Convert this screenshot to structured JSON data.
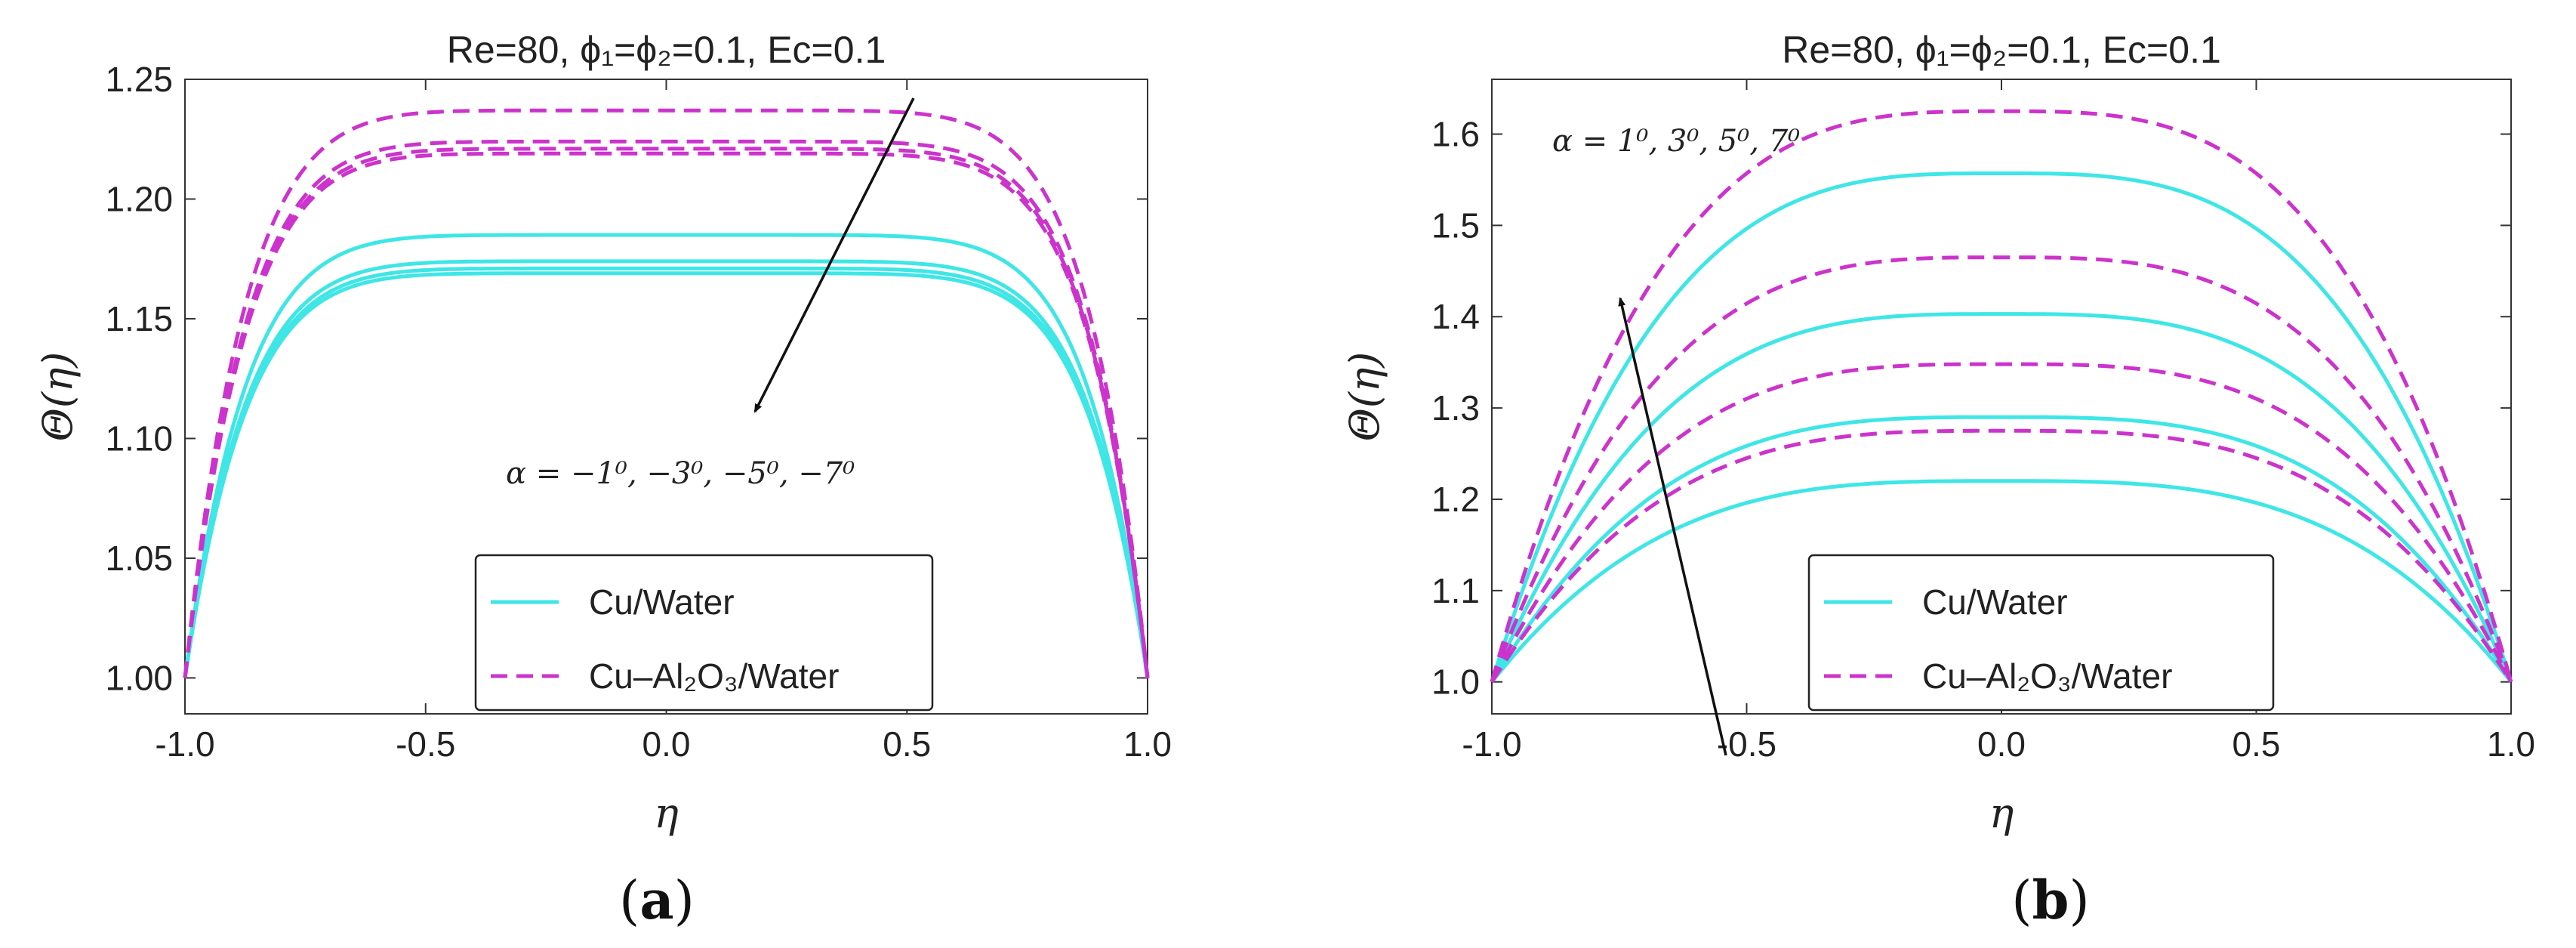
{
  "chart_data": [
    {
      "id": "a",
      "type": "line",
      "title": "Re=80, ϕ₁=ϕ₂=0.1, Ec=0.1",
      "xlabel": "η",
      "ylabel": "Θ(η)",
      "xlim": [
        -1.0,
        1.0
      ],
      "ylim": [
        0.985,
        1.25
      ],
      "xticks": [
        "-1.0",
        "-0.5",
        "0.0",
        "0.5",
        "1.0"
      ],
      "yticks": [
        "1.00",
        "1.05",
        "1.10",
        "1.15",
        "1.20",
        "1.25"
      ],
      "caption": "a",
      "annotation": "α = −1⁰, −3⁰, −5⁰, −7⁰",
      "legend": {
        "placement": "bottom-center",
        "entries": [
          "Cu/Water",
          "Cu–Al₂O₃/Water"
        ]
      },
      "colors": {
        "cu_water": "#3fe6e6",
        "hybrid": "#cc33cc"
      },
      "shape_exponent": 8,
      "series": [
        {
          "name": "Cu/Water",
          "style": "solid",
          "alpha": -1,
          "plateau": 1.185
        },
        {
          "name": "Cu/Water",
          "style": "solid",
          "alpha": -3,
          "plateau": 1.174
        },
        {
          "name": "Cu/Water",
          "style": "solid",
          "alpha": -5,
          "plateau": 1.171
        },
        {
          "name": "Cu/Water",
          "style": "solid",
          "alpha": -7,
          "plateau": 1.169
        },
        {
          "name": "Cu–Al₂O₃/Water",
          "style": "dashed",
          "alpha": -1,
          "plateau": 1.237
        },
        {
          "name": "Cu–Al₂O₃/Water",
          "style": "dashed",
          "alpha": -3,
          "plateau": 1.224
        },
        {
          "name": "Cu–Al₂O₃/Water",
          "style": "dashed",
          "alpha": -5,
          "plateau": 1.221
        },
        {
          "name": "Cu–Al₂O₃/Water",
          "style": "dashed",
          "alpha": -7,
          "plateau": 1.219
        }
      ]
    },
    {
      "id": "b",
      "type": "line",
      "title": "Re=80, ϕ₁=ϕ₂=0.1, Ec=0.1",
      "xlabel": "η",
      "ylabel": "Θ(η)",
      "xlim": [
        -1.0,
        1.0
      ],
      "ylim": [
        0.965,
        1.66
      ],
      "xticks": [
        "-1.0",
        "-0.5",
        "0.0",
        "0.5",
        "1.0"
      ],
      "yticks": [
        "1.0",
        "1.1",
        "1.2",
        "1.3",
        "1.4",
        "1.5",
        "1.6"
      ],
      "caption": "b",
      "annotation": "α = 1⁰, 3⁰, 5⁰, 7⁰",
      "legend": {
        "placement": "bottom-center",
        "entries": [
          "Cu/Water",
          "Cu–Al₂O₃/Water"
        ]
      },
      "colors": {
        "cu_water": "#3fe6e6",
        "hybrid": "#cc33cc"
      },
      "shape_exponent": 3.2,
      "series": [
        {
          "name": "Cu/Water",
          "style": "solid",
          "alpha": 1,
          "plateau": 1.22
        },
        {
          "name": "Cu/Water",
          "style": "solid",
          "alpha": 3,
          "plateau": 1.29
        },
        {
          "name": "Cu/Water",
          "style": "solid",
          "alpha": 5,
          "plateau": 1.403
        },
        {
          "name": "Cu/Water",
          "style": "solid",
          "alpha": 7,
          "plateau": 1.557
        },
        {
          "name": "Cu–Al₂O₃/Water",
          "style": "dashed",
          "alpha": 1,
          "plateau": 1.275
        },
        {
          "name": "Cu–Al₂O₃/Water",
          "style": "dashed",
          "alpha": 3,
          "plateau": 1.348
        },
        {
          "name": "Cu–Al₂O₃/Water",
          "style": "dashed",
          "alpha": 5,
          "plateau": 1.465
        },
        {
          "name": "Cu–Al₂O₃/Water",
          "style": "dashed",
          "alpha": 7,
          "plateau": 1.625
        }
      ]
    }
  ]
}
